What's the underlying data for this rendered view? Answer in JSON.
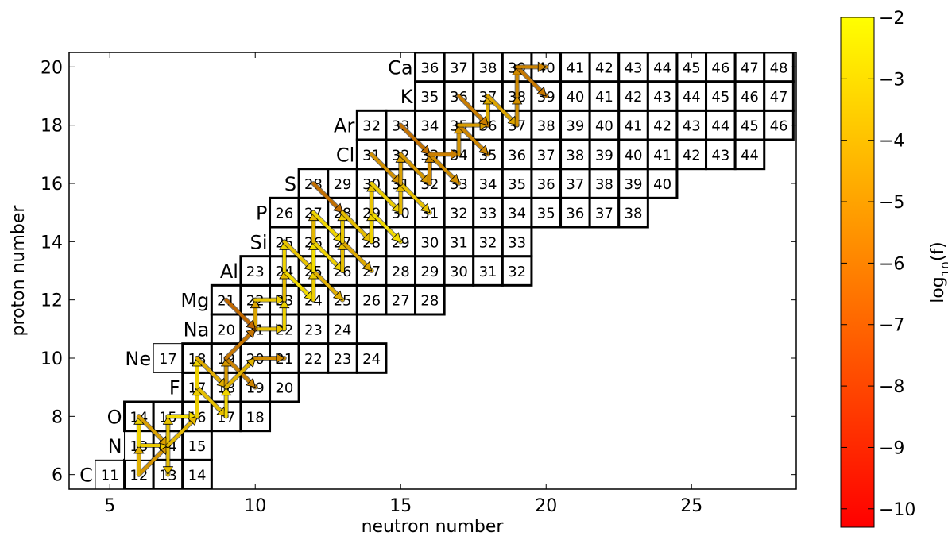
{
  "chart_data": {
    "type": "heatmap",
    "xlabel": "neutron number",
    "ylabel": "proton number",
    "xlim": [
      3.6,
      28.6
    ],
    "ylim": [
      5.5,
      20.5
    ],
    "x_ticks": [
      5,
      10,
      15,
      20,
      25
    ],
    "y_ticks": [
      6,
      8,
      10,
      12,
      14,
      16,
      18,
      20
    ],
    "colorbar": {
      "label": "log10(f)",
      "label_main": "log",
      "label_sub": "10",
      "label_tail": "(f)",
      "range": [
        -10.3,
        -2
      ],
      "ticks": [
        "−2",
        "−3",
        "−4",
        "−5",
        "−6",
        "−7",
        "−8",
        "−9",
        "−10"
      ],
      "tick_values": [
        -2,
        -3,
        -4,
        -5,
        -6,
        -7,
        -8,
        -9,
        -10
      ],
      "colors": [
        "#ff0000",
        "#ff8000",
        "#ffff00"
      ]
    },
    "elements": [
      {
        "symbol": "C",
        "z": 6,
        "a_min": 11,
        "a_max": 14,
        "thin_a": [
          11
        ]
      },
      {
        "symbol": "N",
        "z": 7,
        "a_min": 13,
        "a_max": 15,
        "thin_a": [
          13
        ]
      },
      {
        "symbol": "O",
        "z": 8,
        "a_min": 14,
        "a_max": 18,
        "thin_a": []
      },
      {
        "symbol": "F",
        "z": 9,
        "a_min": 17,
        "a_max": 20,
        "thin_a": []
      },
      {
        "symbol": "Ne",
        "z": 10,
        "a_min": 17,
        "a_max": 24,
        "thin_a": [
          17
        ]
      },
      {
        "symbol": "Na",
        "z": 11,
        "a_min": 20,
        "a_max": 24,
        "thin_a": []
      },
      {
        "symbol": "Mg",
        "z": 12,
        "a_min": 21,
        "a_max": 28,
        "thin_a": []
      },
      {
        "symbol": "Al",
        "z": 13,
        "a_min": 23,
        "a_max": 32,
        "thin_a": []
      },
      {
        "symbol": "Si",
        "z": 14,
        "a_min": 25,
        "a_max": 33,
        "thin_a": []
      },
      {
        "symbol": "P",
        "z": 15,
        "a_min": 26,
        "a_max": 38,
        "thin_a": []
      },
      {
        "symbol": "S",
        "z": 16,
        "a_min": 28,
        "a_max": 40,
        "thin_a": []
      },
      {
        "symbol": "Cl",
        "z": 17,
        "a_min": 31,
        "a_max": 44,
        "thin_a": []
      },
      {
        "symbol": "Ar",
        "z": 18,
        "a_min": 32,
        "a_max": 46,
        "thin_a": []
      },
      {
        "symbol": "K",
        "z": 19,
        "a_min": 35,
        "a_max": 47,
        "thin_a": []
      },
      {
        "symbol": "Ca",
        "z": 20,
        "a_min": 36,
        "a_max": 48,
        "thin_a": []
      }
    ],
    "flows": [
      {
        "from": [
          6,
          6
        ],
        "to": [
          7,
          7
        ],
        "v": -4.5
      },
      {
        "from": [
          7,
          7
        ],
        "to": [
          7,
          6
        ],
        "v": -3.5
      },
      {
        "from": [
          6,
          7
        ],
        "to": [
          7,
          7
        ],
        "v": -3.2
      },
      {
        "from": [
          6,
          6
        ],
        "to": [
          6,
          7
        ],
        "v": -3.8
      },
      {
        "from": [
          6,
          7
        ],
        "to": [
          6,
          8
        ],
        "v": -3.0
      },
      {
        "from": [
          6,
          8
        ],
        "to": [
          7,
          7
        ],
        "v": -4.2
      },
      {
        "from": [
          7,
          7
        ],
        "to": [
          7,
          8
        ],
        "v": -3.3
      },
      {
        "from": [
          7,
          8
        ],
        "to": [
          8,
          8
        ],
        "v": -2.8
      },
      {
        "from": [
          7,
          7
        ],
        "to": [
          8,
          8
        ],
        "v": -3.6
      },
      {
        "from": [
          8,
          8
        ],
        "to": [
          8,
          9
        ],
        "v": -3.1
      },
      {
        "from": [
          8,
          9
        ],
        "to": [
          9,
          8
        ],
        "v": -3.4
      },
      {
        "from": [
          9,
          8
        ],
        "to": [
          9,
          9
        ],
        "v": -2.9
      },
      {
        "from": [
          8,
          9
        ],
        "to": [
          8,
          10
        ],
        "v": -3.0
      },
      {
        "from": [
          8,
          10
        ],
        "to": [
          9,
          9
        ],
        "v": -3.9
      },
      {
        "from": [
          9,
          9
        ],
        "to": [
          9,
          10
        ],
        "v": -4.4
      },
      {
        "from": [
          9,
          10
        ],
        "to": [
          10,
          9
        ],
        "v": -5.0
      },
      {
        "from": [
          9,
          9
        ],
        "to": [
          10,
          10
        ],
        "v": -3.7
      },
      {
        "from": [
          10,
          10
        ],
        "to": [
          11,
          10
        ],
        "v": -4.8
      },
      {
        "from": [
          9,
          10
        ],
        "to": [
          10,
          11
        ],
        "v": -5.4
      },
      {
        "from": [
          10,
          11
        ],
        "to": [
          11,
          11
        ],
        "v": -3.4
      },
      {
        "from": [
          10,
          11
        ],
        "to": [
          10,
          12
        ],
        "v": -4.1
      },
      {
        "from": [
          9,
          12
        ],
        "to": [
          10,
          11
        ],
        "v": -5.8
      },
      {
        "from": [
          10,
          12
        ],
        "to": [
          11,
          12
        ],
        "v": -3.2
      },
      {
        "from": [
          11,
          11
        ],
        "to": [
          11,
          12
        ],
        "v": -3.0
      },
      {
        "from": [
          11,
          12
        ],
        "to": [
          11,
          13
        ],
        "v": -3.5
      },
      {
        "from": [
          11,
          13
        ],
        "to": [
          12,
          12
        ],
        "v": -2.8
      },
      {
        "from": [
          12,
          12
        ],
        "to": [
          12,
          13
        ],
        "v": -3.1
      },
      {
        "from": [
          11,
          13
        ],
        "to": [
          11,
          14
        ],
        "v": -2.9
      },
      {
        "from": [
          11,
          14
        ],
        "to": [
          12,
          13
        ],
        "v": -3.3
      },
      {
        "from": [
          12,
          13
        ],
        "to": [
          13,
          12
        ],
        "v": -3.8
      },
      {
        "from": [
          12,
          13
        ],
        "to": [
          12,
          14
        ],
        "v": -2.7
      },
      {
        "from": [
          12,
          14
        ],
        "to": [
          13,
          13
        ],
        "v": -3.0
      },
      {
        "from": [
          13,
          13
        ],
        "to": [
          13,
          14
        ],
        "v": -3.4
      },
      {
        "from": [
          12,
          14
        ],
        "to": [
          12,
          15
        ],
        "v": -3.6
      },
      {
        "from": [
          12,
          15
        ],
        "to": [
          13,
          14
        ],
        "v": -2.9
      },
      {
        "from": [
          13,
          14
        ],
        "to": [
          14,
          13
        ],
        "v": -4.0
      },
      {
        "from": [
          13,
          14
        ],
        "to": [
          13,
          15
        ],
        "v": -3.2
      },
      {
        "from": [
          12,
          16
        ],
        "to": [
          13,
          15
        ],
        "v": -5.6
      },
      {
        "from": [
          13,
          15
        ],
        "to": [
          14,
          14
        ],
        "v": -3.5
      },
      {
        "from": [
          14,
          14
        ],
        "to": [
          14,
          15
        ],
        "v": -3.0
      },
      {
        "from": [
          14,
          15
        ],
        "to": [
          15,
          14
        ],
        "v": -2.8
      },
      {
        "from": [
          14,
          15
        ],
        "to": [
          14,
          16
        ],
        "v": -3.3
      },
      {
        "from": [
          14,
          16
        ],
        "to": [
          15,
          15
        ],
        "v": -3.1
      },
      {
        "from": [
          15,
          15
        ],
        "to": [
          15,
          16
        ],
        "v": -3.6
      },
      {
        "from": [
          15,
          16
        ],
        "to": [
          16,
          15
        ],
        "v": -3.4
      },
      {
        "from": [
          14,
          17
        ],
        "to": [
          15,
          16
        ],
        "v": -4.6
      },
      {
        "from": [
          15,
          16
        ],
        "to": [
          15,
          17
        ],
        "v": -4.2
      },
      {
        "from": [
          15,
          17
        ],
        "to": [
          16,
          16
        ],
        "v": -4.4
      },
      {
        "from": [
          16,
          16
        ],
        "to": [
          16,
          17
        ],
        "v": -4.8
      },
      {
        "from": [
          15,
          18
        ],
        "to": [
          16,
          17
        ],
        "v": -5.5
      },
      {
        "from": [
          16,
          17
        ],
        "to": [
          17,
          16
        ],
        "v": -4.7
      },
      {
        "from": [
          16,
          17
        ],
        "to": [
          17,
          17
        ],
        "v": -5.1
      },
      {
        "from": [
          17,
          17
        ],
        "to": [
          17,
          18
        ],
        "v": -4.5
      },
      {
        "from": [
          17,
          18
        ],
        "to": [
          18,
          17
        ],
        "v": -4.9
      },
      {
        "from": [
          17,
          18
        ],
        "to": [
          18,
          18
        ],
        "v": -4.3
      },
      {
        "from": [
          18,
          18
        ],
        "to": [
          18,
          19
        ],
        "v": -3.9
      },
      {
        "from": [
          17,
          19
        ],
        "to": [
          18,
          18
        ],
        "v": -5.2
      },
      {
        "from": [
          18,
          19
        ],
        "to": [
          19,
          18
        ],
        "v": -4.1
      },
      {
        "from": [
          19,
          18
        ],
        "to": [
          19,
          19
        ],
        "v": -4.6
      },
      {
        "from": [
          19,
          19
        ],
        "to": [
          19,
          20
        ],
        "v": -4.8
      },
      {
        "from": [
          19,
          20
        ],
        "to": [
          20,
          19
        ],
        "v": -5.3
      },
      {
        "from": [
          19,
          20
        ],
        "to": [
          20,
          20
        ],
        "v": -5.0
      }
    ]
  }
}
